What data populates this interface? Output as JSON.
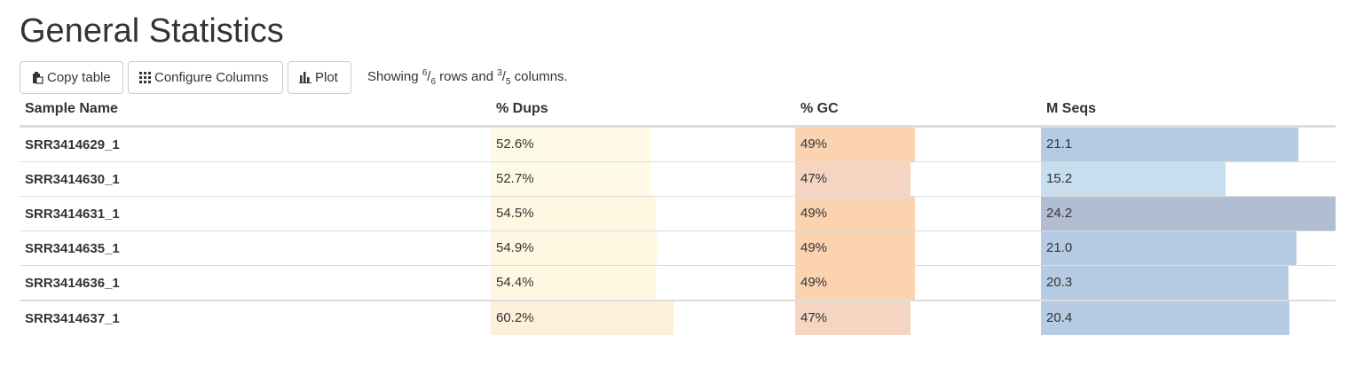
{
  "page": {
    "title": "General Statistics"
  },
  "toolbar": {
    "copy_label": "Copy table",
    "configure_label": "Configure Columns",
    "plot_label": "Plot",
    "showing_prefix": "Showing ",
    "rows_shown": "6",
    "rows_total": "6",
    "rows_word": " rows and ",
    "cols_shown": "3",
    "cols_total": "5",
    "cols_word": " columns."
  },
  "table": {
    "headers": [
      "Sample Name",
      "% Dups",
      "% GC",
      "M Seqs"
    ],
    "rows": [
      {
        "name": "SRR3414629_1",
        "dups": "52.6%",
        "gc": "49%",
        "mseqs": "21.1",
        "dups_frac": 0.874,
        "gc_frac": 0.49,
        "mseqs_frac": 0.872,
        "dups_color": "#fefae5",
        "gc_color": "#fcd3b1",
        "mseqs_color": "#b5cbe4"
      },
      {
        "name": "SRR3414630_1",
        "dups": "52.7%",
        "gc": "47%",
        "mseqs": "15.2",
        "dups_frac": 0.876,
        "gc_frac": 0.47,
        "mseqs_frac": 0.628,
        "dups_color": "#fefae5",
        "gc_color": "#f5d5c1",
        "mseqs_color": "#c7deef"
      },
      {
        "name": "SRR3414631_1",
        "dups": "54.5%",
        "gc": "49%",
        "mseqs": "24.2",
        "dups_frac": 0.905,
        "gc_frac": 0.49,
        "mseqs_frac": 1.0,
        "dups_color": "#fef8e3",
        "gc_color": "#fcd3b1",
        "mseqs_color": "#b1bdd3"
      },
      {
        "name": "SRR3414635_1",
        "dups": "54.9%",
        "gc": "49%",
        "mseqs": "21.0",
        "dups_frac": 0.912,
        "gc_frac": 0.49,
        "mseqs_frac": 0.868,
        "dups_color": "#fef8e3",
        "gc_color": "#fcd3b1",
        "mseqs_color": "#b5cbe4"
      },
      {
        "name": "SRR3414636_1",
        "dups": "54.4%",
        "gc": "49%",
        "mseqs": "20.3",
        "dups_frac": 0.904,
        "gc_frac": 0.49,
        "mseqs_frac": 0.839,
        "dups_color": "#fef8e3",
        "gc_color": "#fcd3b1",
        "mseqs_color": "#b6cce4"
      },
      {
        "name": "SRR3414637_1",
        "dups": "60.2%",
        "gc": "47%",
        "mseqs": "20.4",
        "dups_frac": 1.0,
        "gc_frac": 0.47,
        "mseqs_frac": 0.843,
        "dups_color": "#fdf0db",
        "gc_color": "#f5d5c1",
        "mseqs_color": "#b6cce4"
      }
    ]
  },
  "icons": {
    "copy": "clipboard-icon",
    "configure": "grid-icon",
    "plot": "bar-chart-icon"
  }
}
